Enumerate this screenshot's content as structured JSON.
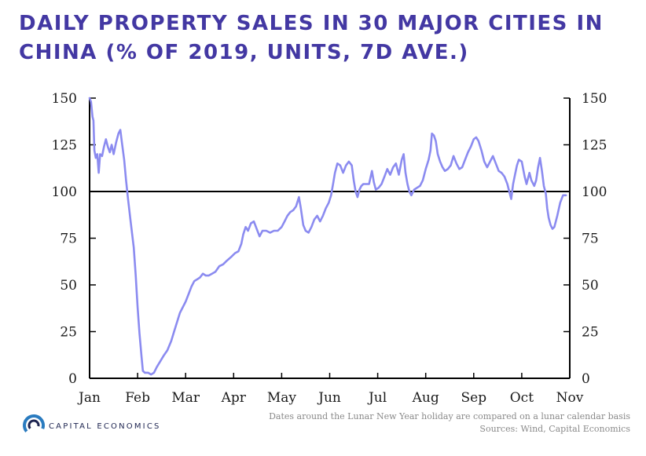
{
  "title": "DAILY PROPERTY SALES IN 30 MAJOR CITIES IN CHINA (% OF 2019, UNITS, 7D AVE.)",
  "footnote": "Dates around the Lunar New Year holiday are compared on a lunar calendar basis",
  "sources": "Sources: Wind, Capital Economics",
  "logo_text": "CAPITAL ECONOMICS",
  "colors": {
    "line": "#8b8bf0",
    "title": "#4338a3",
    "axis": "#000000",
    "logo_blue": "#2a7bbf",
    "logo_navy": "#1d2450"
  },
  "chart_data": {
    "type": "line",
    "title": "DAILY PROPERTY SALES IN 30 MAJOR CITIES IN CHINA (% OF 2019, UNITS, 7D AVE.)",
    "xlabel": "",
    "ylabel": "",
    "x_ticks": [
      "Jan",
      "Feb",
      "Mar",
      "Apr",
      "May",
      "Jun",
      "Jul",
      "Aug",
      "Sep",
      "Oct",
      "Nov"
    ],
    "ylim": [
      0,
      150
    ],
    "y_ticks": [
      0,
      25,
      50,
      75,
      100,
      125,
      150
    ],
    "reference_line": 100,
    "grid": false,
    "x_unit": "months since start of January (0 = Jan 1, 10 = Nov 1)",
    "series": [
      {
        "name": "",
        "points": [
          [
            0.0,
            150
          ],
          [
            0.03,
            148
          ],
          [
            0.06,
            140
          ],
          [
            0.08,
            138
          ],
          [
            0.1,
            122
          ],
          [
            0.13,
            118
          ],
          [
            0.16,
            120
          ],
          [
            0.19,
            110
          ],
          [
            0.22,
            120
          ],
          [
            0.26,
            119
          ],
          [
            0.3,
            124
          ],
          [
            0.34,
            128
          ],
          [
            0.38,
            124
          ],
          [
            0.42,
            121
          ],
          [
            0.46,
            125
          ],
          [
            0.5,
            120
          ],
          [
            0.55,
            126
          ],
          [
            0.6,
            131
          ],
          [
            0.64,
            133
          ],
          [
            0.68,
            125
          ],
          [
            0.72,
            117
          ],
          [
            0.76,
            106
          ],
          [
            0.8,
            96
          ],
          [
            0.86,
            83
          ],
          [
            0.92,
            70
          ],
          [
            0.96,
            55
          ],
          [
            1.0,
            38
          ],
          [
            1.04,
            24
          ],
          [
            1.08,
            12
          ],
          [
            1.11,
            4
          ],
          [
            1.15,
            3
          ],
          [
            1.22,
            3
          ],
          [
            1.28,
            2
          ],
          [
            1.34,
            3
          ],
          [
            1.4,
            6
          ],
          [
            1.47,
            9
          ],
          [
            1.54,
            12
          ],
          [
            1.62,
            15
          ],
          [
            1.7,
            20
          ],
          [
            1.76,
            25
          ],
          [
            1.82,
            30
          ],
          [
            1.88,
            35
          ],
          [
            1.94,
            38
          ],
          [
            2.0,
            41
          ],
          [
            2.06,
            45
          ],
          [
            2.12,
            49
          ],
          [
            2.18,
            52
          ],
          [
            2.24,
            53
          ],
          [
            2.3,
            54
          ],
          [
            2.36,
            56
          ],
          [
            2.42,
            55
          ],
          [
            2.48,
            55
          ],
          [
            2.55,
            56
          ],
          [
            2.62,
            57
          ],
          [
            2.7,
            60
          ],
          [
            2.78,
            61
          ],
          [
            2.86,
            63
          ],
          [
            2.95,
            65
          ],
          [
            3.03,
            67
          ],
          [
            3.1,
            68
          ],
          [
            3.16,
            72
          ],
          [
            3.2,
            77
          ],
          [
            3.25,
            81
          ],
          [
            3.3,
            79
          ],
          [
            3.36,
            83
          ],
          [
            3.42,
            84
          ],
          [
            3.48,
            80
          ],
          [
            3.54,
            76
          ],
          [
            3.6,
            79
          ],
          [
            3.68,
            79
          ],
          [
            3.76,
            78
          ],
          [
            3.84,
            79
          ],
          [
            3.92,
            79
          ],
          [
            4.0,
            81
          ],
          [
            4.06,
            84
          ],
          [
            4.12,
            87
          ],
          [
            4.18,
            89
          ],
          [
            4.24,
            90
          ],
          [
            4.3,
            92
          ],
          [
            4.36,
            97
          ],
          [
            4.4,
            91
          ],
          [
            4.45,
            82
          ],
          [
            4.5,
            79
          ],
          [
            4.56,
            78
          ],
          [
            4.62,
            81
          ],
          [
            4.68,
            85
          ],
          [
            4.74,
            87
          ],
          [
            4.8,
            84
          ],
          [
            4.86,
            87
          ],
          [
            4.92,
            91
          ],
          [
            4.98,
            94
          ],
          [
            5.03,
            98
          ],
          [
            5.07,
            104
          ],
          [
            5.11,
            110
          ],
          [
            5.16,
            115
          ],
          [
            5.22,
            114
          ],
          [
            5.28,
            110
          ],
          [
            5.34,
            114
          ],
          [
            5.4,
            116
          ],
          [
            5.46,
            114
          ],
          [
            5.5,
            106
          ],
          [
            5.54,
            100
          ],
          [
            5.58,
            97
          ],
          [
            5.62,
            101
          ],
          [
            5.66,
            103
          ],
          [
            5.7,
            104
          ],
          [
            5.76,
            104
          ],
          [
            5.82,
            104
          ],
          [
            5.88,
            111
          ],
          [
            5.92,
            105
          ],
          [
            5.96,
            101
          ],
          [
            6.02,
            102
          ],
          [
            6.08,
            104
          ],
          [
            6.14,
            108
          ],
          [
            6.2,
            112
          ],
          [
            6.26,
            109
          ],
          [
            6.32,
            113
          ],
          [
            6.38,
            115
          ],
          [
            6.44,
            109
          ],
          [
            6.5,
            117
          ],
          [
            6.54,
            120
          ],
          [
            6.58,
            110
          ],
          [
            6.62,
            104
          ],
          [
            6.66,
            100
          ],
          [
            6.7,
            98
          ],
          [
            6.76,
            101
          ],
          [
            6.82,
            102
          ],
          [
            6.88,
            103
          ],
          [
            6.94,
            106
          ],
          [
            7.0,
            112
          ],
          [
            7.06,
            117
          ],
          [
            7.1,
            122
          ],
          [
            7.13,
            131
          ],
          [
            7.17,
            130
          ],
          [
            7.21,
            127
          ],
          [
            7.25,
            120
          ],
          [
            7.3,
            116
          ],
          [
            7.35,
            113
          ],
          [
            7.4,
            111
          ],
          [
            7.46,
            112
          ],
          [
            7.52,
            114
          ],
          [
            7.58,
            119
          ],
          [
            7.64,
            115
          ],
          [
            7.7,
            112
          ],
          [
            7.76,
            113
          ],
          [
            7.82,
            117
          ],
          [
            7.88,
            121
          ],
          [
            7.94,
            124
          ],
          [
            8.0,
            128
          ],
          [
            8.05,
            129
          ],
          [
            8.1,
            127
          ],
          [
            8.16,
            122
          ],
          [
            8.22,
            116
          ],
          [
            8.28,
            113
          ],
          [
            8.34,
            116
          ],
          [
            8.4,
            119
          ],
          [
            8.46,
            115
          ],
          [
            8.52,
            111
          ],
          [
            8.58,
            110
          ],
          [
            8.64,
            108
          ],
          [
            8.7,
            104
          ],
          [
            8.74,
            100
          ],
          [
            8.78,
            96
          ],
          [
            8.82,
            104
          ],
          [
            8.86,
            109
          ],
          [
            8.9,
            114
          ],
          [
            8.94,
            117
          ],
          [
            9.0,
            116
          ],
          [
            9.06,
            108
          ],
          [
            9.1,
            104
          ],
          [
            9.16,
            110
          ],
          [
            9.2,
            106
          ],
          [
            9.26,
            103
          ],
          [
            9.3,
            106
          ],
          [
            9.34,
            113
          ],
          [
            9.38,
            118
          ],
          [
            9.42,
            111
          ],
          [
            9.46,
            103
          ],
          [
            9.5,
            99
          ],
          [
            9.53,
            91
          ],
          [
            9.56,
            86
          ],
          [
            9.6,
            82
          ],
          [
            9.64,
            80
          ],
          [
            9.68,
            81
          ],
          [
            9.74,
            87
          ],
          [
            9.8,
            94
          ],
          [
            9.86,
            98
          ],
          [
            9.92,
            98
          ]
        ]
      }
    ]
  }
}
